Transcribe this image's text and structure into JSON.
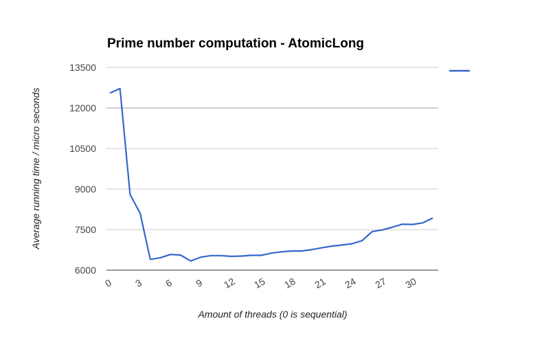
{
  "chart_data": {
    "type": "line",
    "title": "Prime number computation - AtomicLong",
    "xlabel": "Amount of threads (0 is sequential)",
    "ylabel": "Average running time / micro seconds",
    "x": [
      0,
      1,
      2,
      3,
      4,
      5,
      6,
      7,
      8,
      9,
      10,
      11,
      12,
      13,
      14,
      15,
      16,
      17,
      18,
      19,
      20,
      21,
      22,
      23,
      24,
      25,
      26,
      27,
      28,
      29,
      30,
      31,
      32
    ],
    "series": [
      {
        "values": [
          12550,
          12720,
          8800,
          8100,
          6400,
          6460,
          6580,
          6560,
          6340,
          6480,
          6540,
          6540,
          6510,
          6520,
          6550,
          6550,
          6630,
          6680,
          6710,
          6710,
          6760,
          6830,
          6890,
          6930,
          6980,
          7090,
          7430,
          7490,
          7590,
          7700,
          7690,
          7750,
          7930
        ],
        "color": "#3366cc"
      }
    ],
    "xticks": [
      0,
      3,
      6,
      9,
      12,
      15,
      18,
      21,
      24,
      27,
      30
    ],
    "yticks": [
      6000,
      7500,
      9000,
      10500,
      12000,
      13500
    ],
    "xlim": [
      0,
      32
    ],
    "ylim": [
      6000,
      13500
    ],
    "grid": true,
    "legend_position": "right"
  }
}
